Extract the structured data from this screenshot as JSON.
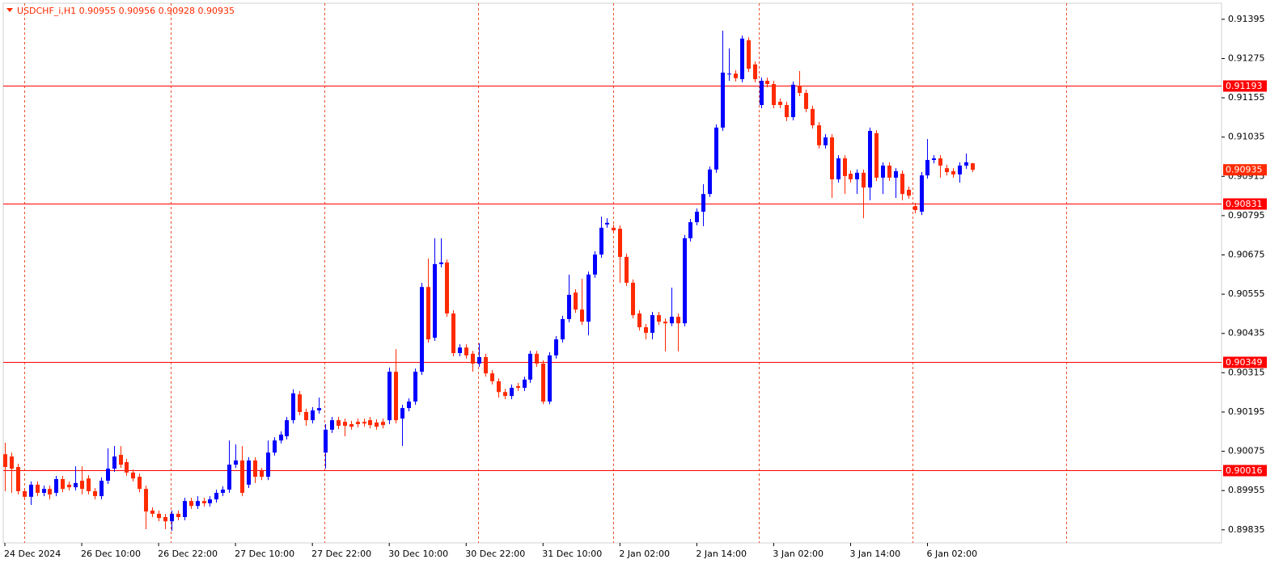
{
  "chart_data": {
    "type": "candlestick",
    "title": "USDCHF_i,H1  0.90955 0.90956 0.90928 0.90935",
    "up_color": "#0000ff",
    "down_color": "#ff2a00",
    "hline_color": "#ff0000",
    "grid": true,
    "ylim": [
      0.89795,
      0.91444
    ],
    "yticks": [
      0.91395,
      0.91275,
      0.91155,
      0.91035,
      0.90915,
      0.90795,
      0.90675,
      0.90555,
      0.90435,
      0.90315,
      0.90195,
      0.90075,
      0.89955,
      0.89835
    ],
    "hlines": [
      0.91193,
      0.90831,
      0.90349,
      0.90016
    ],
    "current_price": 0.90935,
    "categories": [
      "24 Dec 2024",
      null,
      null,
      null,
      null,
      null,
      null,
      null,
      null,
      null,
      null,
      null,
      "26 Dec 10:00",
      null,
      null,
      null,
      null,
      null,
      null,
      null,
      null,
      null,
      null,
      null,
      "26 Dec 22:00",
      null,
      null,
      null,
      null,
      null,
      null,
      null,
      null,
      null,
      null,
      null,
      "27 Dec 10:00",
      null,
      null,
      null,
      null,
      null,
      null,
      null,
      null,
      null,
      null,
      null,
      "27 Dec 22:00",
      null,
      null,
      null,
      null,
      null,
      null,
      null,
      null,
      null,
      null,
      null,
      "30 Dec 10:00",
      null,
      null,
      null,
      null,
      null,
      null,
      null,
      null,
      null,
      null,
      null,
      "30 Dec 22:00",
      null,
      null,
      null,
      null,
      null,
      null,
      null,
      null,
      null,
      null,
      null,
      "31 Dec 10:00",
      null,
      null,
      null,
      null,
      null,
      null,
      null,
      null,
      null,
      null,
      null,
      "2 Jan 02:00",
      null,
      null,
      null,
      null,
      null,
      null,
      null,
      null,
      null,
      null,
      null,
      "2 Jan 14:00",
      null,
      null,
      null,
      null,
      null,
      null,
      null,
      null,
      null,
      null,
      null,
      "3 Jan 02:00",
      null,
      null,
      null,
      null,
      null,
      null,
      null,
      null,
      null,
      null,
      null,
      "3 Jan 14:00",
      null,
      null,
      null,
      null,
      null,
      null,
      null,
      null,
      null,
      null,
      null,
      "6 Jan 02:00",
      null,
      null,
      null,
      null,
      null,
      null,
      null
    ],
    "open": [
      0.90066,
      0.90059,
      0.90027,
      0.89953,
      0.89936,
      0.89973,
      0.89948,
      0.8996,
      0.89948,
      0.8999,
      0.89973,
      0.89965,
      0.89985,
      0.89992,
      0.89953,
      0.89938,
      0.89985,
      0.90022,
      0.90064,
      0.90042,
      0.9001,
      0.89997,
      0.8996,
      0.89894,
      0.89884,
      0.89874,
      0.89861,
      0.89884,
      0.89874,
      0.89923,
      0.89908,
      0.89923,
      0.89916,
      0.89928,
      0.89948,
      0.89958,
      0.90034,
      0.90047,
      0.89973,
      0.90047,
      0.90015,
      0.89997,
      0.90071,
      0.90108,
      0.90121,
      0.9017,
      0.90249,
      0.90195,
      0.9017,
      0.902,
      0.90071,
      0.90141,
      0.9017,
      0.90165,
      0.90158,
      0.90165,
      0.90165,
      0.9017,
      0.90163,
      0.90165,
      0.9017,
      0.90318,
      0.90175,
      0.90207,
      0.90227,
      0.90318,
      0.90577,
      0.90422,
      0.90647,
      0.90652,
      0.90496,
      0.90375,
      0.90392,
      0.90373,
      0.90343,
      0.90363,
      0.90313,
      0.90289,
      0.90256,
      0.90244,
      0.90274,
      0.90269,
      0.90294,
      0.90373,
      0.90343,
      0.90227,
      0.90368,
      0.90417,
      0.90479,
      0.9056,
      0.90508,
      0.90471,
      0.90615,
      0.90676,
      0.90768,
      0.90758,
      0.90755,
      0.90669,
      0.9059,
      0.90496,
      0.90454,
      0.90437,
      0.90491,
      0.90471,
      0.90466,
      0.90486,
      0.90466,
      0.90726,
      0.90775,
      0.90807,
      0.90861,
      0.90936,
      0.91064,
      0.91227,
      0.91229,
      0.91212,
      0.91331,
      0.91257,
      0.91133,
      0.91207,
      0.91197,
      0.91143,
      0.91133,
      0.91096,
      0.91192,
      0.9117,
      0.91121,
      0.91071,
      0.9101,
      0.91034,
      0.90906,
      0.9097,
      0.90923,
      0.90906,
      0.90926,
      0.90881,
      0.91047,
      0.90911,
      0.90948,
      0.90911,
      0.90923,
      0.90874,
      0.90824,
      0.90807,
      0.90918,
      0.90965,
      0.9097,
      0.9094,
      0.90931,
      0.90921,
      0.90948,
      0.90955
    ],
    "high": [
      0.90101,
      0.90071,
      0.90037,
      0.89963,
      0.89983,
      0.89983,
      0.8997,
      0.8997,
      0.9,
      0.9,
      0.89983,
      0.90029,
      0.90029,
      0.90002,
      0.89963,
      0.89995,
      0.90084,
      0.90091,
      0.90091,
      0.90052,
      0.90019,
      0.90007,
      0.8997,
      0.89904,
      0.89894,
      0.89884,
      0.89894,
      0.89894,
      0.89933,
      0.89933,
      0.89938,
      0.89933,
      0.89938,
      0.89958,
      0.89968,
      0.90108,
      0.90096,
      0.90091,
      0.90057,
      0.90057,
      0.90024,
      0.90108,
      0.90118,
      0.90136,
      0.9018,
      0.90264,
      0.90259,
      0.90205,
      0.9021,
      0.90239,
      0.90158,
      0.9018,
      0.9018,
      0.90175,
      0.90168,
      0.90175,
      0.90175,
      0.9018,
      0.90173,
      0.90175,
      0.90331,
      0.90387,
      0.90217,
      0.90237,
      0.90328,
      0.9059,
      0.90664,
      0.90726,
      0.90726,
      0.90661,
      0.90506,
      0.90402,
      0.90402,
      0.90382,
      0.90405,
      0.90373,
      0.90323,
      0.90298,
      0.90266,
      0.90279,
      0.90284,
      0.90303,
      0.90382,
      0.90382,
      0.90353,
      0.90378,
      0.90427,
      0.90489,
      0.90615,
      0.9057,
      0.90602,
      0.90624,
      0.90686,
      0.90792,
      0.90787,
      0.90768,
      0.90765,
      0.90679,
      0.906,
      0.90506,
      0.90464,
      0.90501,
      0.90501,
      0.90481,
      0.90575,
      0.90496,
      0.90736,
      0.90785,
      0.90817,
      0.90891,
      0.90945,
      0.91074,
      0.9136,
      0.91306,
      0.91239,
      0.91345,
      0.9134,
      0.91266,
      0.91217,
      0.91217,
      0.91207,
      0.91153,
      0.91143,
      0.91205,
      0.91237,
      0.9118,
      0.91131,
      0.91081,
      0.91044,
      0.91044,
      0.9098,
      0.9098,
      0.90933,
      0.90936,
      0.90936,
      0.91064,
      0.91056,
      0.90958,
      0.90958,
      0.9094,
      0.90933,
      0.90884,
      0.90834,
      0.90928,
      0.91029,
      0.9098,
      0.9098,
      0.9095,
      0.9094,
      0.90958,
      0.90985,
      0.90956
    ],
    "low": [
      0.89953,
      0.89948,
      0.89943,
      0.89926,
      0.89911,
      0.89938,
      0.89938,
      0.89928,
      0.89938,
      0.8995,
      0.89955,
      0.89955,
      0.89943,
      0.89943,
      0.89928,
      0.89928,
      0.89975,
      0.90012,
      0.90024,
      0.9,
      0.89983,
      0.8995,
      0.89837,
      0.89874,
      0.89861,
      0.89837,
      0.89832,
      0.89864,
      0.89864,
      0.89899,
      0.89899,
      0.89906,
      0.89906,
      0.89918,
      0.89938,
      0.89948,
      0.90024,
      0.89938,
      0.89963,
      0.89978,
      0.89987,
      0.89987,
      0.90062,
      0.90099,
      0.90111,
      0.9016,
      0.90185,
      0.90153,
      0.9016,
      0.9019,
      0.90022,
      0.90131,
      0.90143,
      0.90121,
      0.90141,
      0.90148,
      0.9015,
      0.90145,
      0.90141,
      0.90145,
      0.90158,
      0.9016,
      0.90091,
      0.90197,
      0.90217,
      0.90308,
      0.90407,
      0.90412,
      0.90637,
      0.90486,
      0.90365,
      0.90365,
      0.90358,
      0.90318,
      0.90333,
      0.90303,
      0.90279,
      0.90239,
      0.90234,
      0.90234,
      0.90259,
      0.90259,
      0.90284,
      0.90333,
      0.90219,
      0.90219,
      0.90358,
      0.90407,
      0.90469,
      0.90498,
      0.90461,
      0.90429,
      0.90605,
      0.90666,
      0.90758,
      0.9074,
      0.9059,
      0.9058,
      0.90481,
      0.90444,
      0.90417,
      0.90417,
      0.90461,
      0.9038,
      0.90457,
      0.9038,
      0.90457,
      0.90716,
      0.90765,
      0.90763,
      0.90852,
      0.90926,
      0.91054,
      0.91207,
      0.91205,
      0.91202,
      0.91234,
      0.91202,
      0.91123,
      0.91187,
      0.91123,
      0.91123,
      0.91084,
      0.91086,
      0.9116,
      0.91111,
      0.91061,
      0.91,
      0.91,
      0.90849,
      0.90896,
      0.90861,
      0.90896,
      0.90861,
      0.90787,
      0.90842,
      0.90901,
      0.90861,
      0.90901,
      0.90849,
      0.90842,
      0.90847,
      0.90802,
      0.90797,
      0.90908,
      0.90955,
      0.90911,
      0.90918,
      0.90911,
      0.90896,
      0.90938,
      0.90928
    ],
    "close": [
      0.90027,
      0.90022,
      0.89953,
      0.89936,
      0.89973,
      0.89948,
      0.8996,
      0.89943,
      0.8999,
      0.8996,
      0.89965,
      0.89978,
      0.8996,
      0.89953,
      0.89938,
      0.89985,
      0.90022,
      0.90059,
      0.90034,
      0.9001,
      0.89992,
      0.8996,
      0.89891,
      0.89884,
      0.89871,
      0.89861,
      0.89884,
      0.89874,
      0.89923,
      0.89908,
      0.89923,
      0.89916,
      0.89928,
      0.89948,
      0.89958,
      0.90034,
      0.90047,
      0.89948,
      0.90047,
      0.89997,
      0.89997,
      0.90071,
      0.90108,
      0.90126,
      0.9017,
      0.90252,
      0.90195,
      0.9017,
      0.902,
      0.90207,
      0.90141,
      0.9017,
      0.90153,
      0.90153,
      0.9015,
      0.90158,
      0.9016,
      0.90155,
      0.9015,
      0.90155,
      0.90318,
      0.9017,
      0.90207,
      0.90227,
      0.90318,
      0.90577,
      0.90417,
      0.90647,
      0.90652,
      0.90496,
      0.90375,
      0.90392,
      0.90368,
      0.90343,
      0.90363,
      0.90313,
      0.90289,
      0.90256,
      0.90244,
      0.90269,
      0.90269,
      0.90294,
      0.90373,
      0.90343,
      0.90227,
      0.90368,
      0.90417,
      0.90479,
      0.90553,
      0.90508,
      0.90471,
      0.90615,
      0.90676,
      0.90758,
      0.90773,
      0.9075,
      0.90669,
      0.9059,
      0.90491,
      0.90454,
      0.90437,
      0.90491,
      0.90471,
      0.90466,
      0.90486,
      0.90466,
      0.90726,
      0.90775,
      0.90807,
      0.90861,
      0.90936,
      0.91064,
      0.91232,
      0.91229,
      0.91215,
      0.91336,
      0.91244,
      0.91212,
      0.91207,
      0.91197,
      0.91133,
      0.91133,
      0.91096,
      0.91195,
      0.9117,
      0.91121,
      0.91071,
      0.9101,
      0.91034,
      0.90906,
      0.9097,
      0.90916,
      0.90906,
      0.90926,
      0.90881,
      0.91054,
      0.90911,
      0.90948,
      0.90911,
      0.90931,
      0.90861,
      0.90856,
      0.90812,
      0.90918,
      0.90965,
      0.9097,
      0.90948,
      0.90928,
      0.90921,
      0.90948,
      0.90958,
      0.90935
    ]
  }
}
